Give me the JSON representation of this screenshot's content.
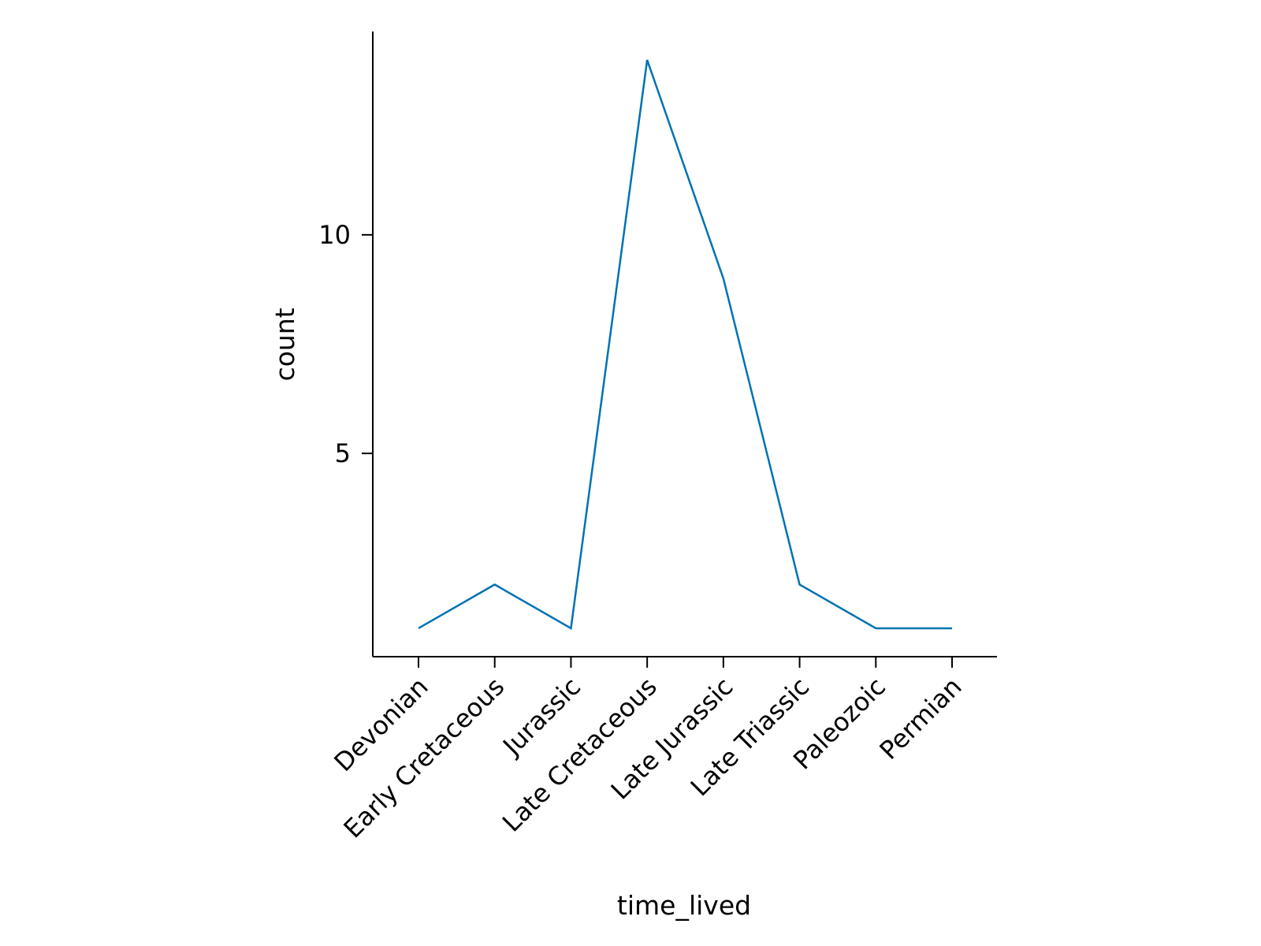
{
  "chart_data": {
    "type": "line",
    "categories": [
      "Devonian",
      "Early Cretaceous",
      "Jurassic",
      "Late Cretaceous",
      "Late Jurassic",
      "Late Triassic",
      "Paleozoic",
      "Permian"
    ],
    "series": [
      {
        "values": [
          1,
          2,
          1,
          14,
          9,
          2,
          1,
          1
        ],
        "color": "#0072b2"
      }
    ],
    "xlabel": "time_lived",
    "ylabel": "count",
    "yticks": [
      5,
      10
    ],
    "ylim": [
      0.35,
      14.65
    ],
    "grid": false,
    "legend": "none"
  }
}
